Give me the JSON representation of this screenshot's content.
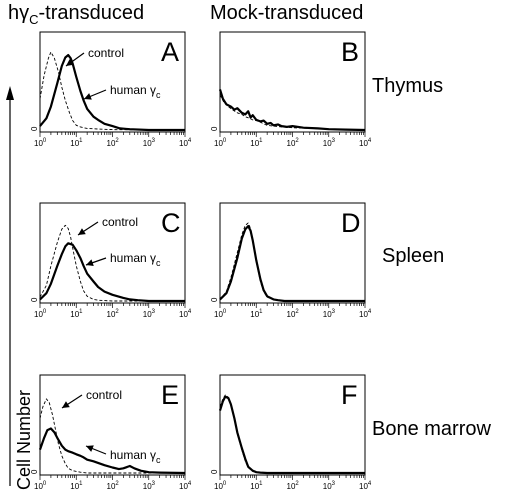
{
  "headers": {
    "left_prefix": "hγ",
    "left_sub": "C",
    "left_suffix": "-transduced",
    "right": "Mock-transduced"
  },
  "tissues": [
    "Thymus",
    "Spleen",
    "Bone marrow"
  ],
  "y_axis_label": "Cell Number",
  "annotations": {
    "control": "control",
    "human_prefix": "human γ",
    "human_sub": "c"
  },
  "chart_data": [
    {
      "type": "line",
      "panel": "A",
      "x_scale": "log",
      "xlim": [
        1,
        10000
      ],
      "y_min_label": "0",
      "x_ticks": [
        {
          "base": "10",
          "exp": "0"
        },
        {
          "base": "10",
          "exp": "1"
        },
        {
          "base": "10",
          "exp": "2"
        },
        {
          "base": "10",
          "exp": "3"
        },
        {
          "base": "10",
          "exp": "4"
        }
      ],
      "series": [
        {
          "name": "control",
          "style": "dashed",
          "x": [
            1,
            1.3,
            1.7,
            2,
            2.5,
            3.2,
            4,
            5,
            6.5,
            8,
            10,
            13,
            16,
            20,
            30,
            50,
            100,
            1000,
            10000
          ],
          "y": [
            0.4,
            0.7,
            0.92,
            1.0,
            0.92,
            0.75,
            0.55,
            0.38,
            0.22,
            0.12,
            0.06,
            0.04,
            0.03,
            0.02,
            0.015,
            0.01,
            0.005,
            0,
            0
          ]
        },
        {
          "name": "human γc",
          "style": "solid",
          "x": [
            1,
            1.5,
            2,
            3,
            4,
            5,
            6,
            7,
            8,
            10,
            13,
            16,
            20,
            30,
            40,
            60,
            100,
            160,
            300,
            1000,
            10000
          ],
          "y": [
            0.05,
            0.15,
            0.3,
            0.6,
            0.82,
            0.93,
            0.96,
            0.92,
            0.85,
            0.68,
            0.5,
            0.38,
            0.27,
            0.17,
            0.13,
            0.08,
            0.05,
            0.02,
            0.01,
            0,
            0
          ]
        }
      ]
    },
    {
      "type": "line",
      "panel": "B",
      "x_scale": "log",
      "xlim": [
        1,
        10000
      ],
      "y_min_label": "0",
      "x_ticks": [
        {
          "base": "10",
          "exp": "0"
        },
        {
          "base": "10",
          "exp": "1"
        },
        {
          "base": "10",
          "exp": "2"
        },
        {
          "base": "10",
          "exp": "3"
        },
        {
          "base": "10",
          "exp": "4"
        }
      ],
      "series": [
        {
          "name": "control",
          "style": "dashed",
          "x": [
            1,
            1.3,
            1.7,
            2.2,
            3,
            4,
            5,
            6.5,
            8,
            10,
            13,
            16,
            20,
            30,
            50,
            100,
            300,
            1000,
            3000,
            10000
          ],
          "y": [
            0.45,
            0.35,
            0.3,
            0.26,
            0.22,
            0.2,
            0.17,
            0.15,
            0.13,
            0.12,
            0.1,
            0.08,
            0.06,
            0.05,
            0.04,
            0.03,
            0.02,
            0.01,
            0.005,
            0
          ]
        },
        {
          "name": "human γc",
          "style": "solid",
          "x": [
            1,
            1.2,
            1.5,
            2,
            2.5,
            3,
            4,
            5,
            6,
            7,
            8,
            10,
            13,
            16,
            20,
            25,
            30,
            40,
            50,
            70,
            100,
            200,
            500,
            1000,
            3000,
            10000
          ],
          "y": [
            0.52,
            0.4,
            0.33,
            0.3,
            0.26,
            0.28,
            0.22,
            0.2,
            0.24,
            0.16,
            0.19,
            0.13,
            0.11,
            0.12,
            0.08,
            0.09,
            0.06,
            0.07,
            0.05,
            0.04,
            0.05,
            0.03,
            0.02,
            0.01,
            0.005,
            0
          ]
        }
      ]
    },
    {
      "type": "line",
      "panel": "C",
      "x_scale": "log",
      "xlim": [
        1,
        10000
      ],
      "y_min_label": "0",
      "x_ticks": [
        {
          "base": "10",
          "exp": "0"
        },
        {
          "base": "10",
          "exp": "1"
        },
        {
          "base": "10",
          "exp": "2"
        },
        {
          "base": "10",
          "exp": "3"
        },
        {
          "base": "10",
          "exp": "4"
        }
      ],
      "series": [
        {
          "name": "control",
          "style": "dashed",
          "x": [
            1,
            1.5,
            2,
            3,
            4,
            5,
            6,
            7,
            8,
            10,
            13,
            16,
            20,
            30,
            40,
            60,
            100,
            1000,
            10000
          ],
          "y": [
            0.05,
            0.2,
            0.45,
            0.75,
            0.92,
            0.97,
            0.93,
            0.82,
            0.68,
            0.45,
            0.25,
            0.13,
            0.06,
            0.02,
            0.01,
            0.005,
            0,
            0,
            0
          ]
        },
        {
          "name": "human γc",
          "style": "solid",
          "x": [
            1,
            1.5,
            2,
            3,
            4,
            5,
            6,
            7,
            8,
            10,
            13,
            16,
            20,
            30,
            40,
            60,
            100,
            200,
            300,
            500,
            1000,
            10000
          ],
          "y": [
            0.02,
            0.1,
            0.22,
            0.45,
            0.6,
            0.7,
            0.74,
            0.73,
            0.72,
            0.65,
            0.55,
            0.45,
            0.35,
            0.25,
            0.18,
            0.12,
            0.08,
            0.04,
            0.02,
            0.01,
            0,
            0
          ]
        }
      ]
    },
    {
      "type": "line",
      "panel": "D",
      "x_scale": "log",
      "xlim": [
        1,
        10000
      ],
      "y_min_label": "0",
      "x_ticks": [
        {
          "base": "10",
          "exp": "0"
        },
        {
          "base": "10",
          "exp": "1"
        },
        {
          "base": "10",
          "exp": "2"
        },
        {
          "base": "10",
          "exp": "3"
        },
        {
          "base": "10",
          "exp": "4"
        }
      ],
      "series": [
        {
          "name": "control",
          "style": "dashed",
          "x": [
            1,
            1.5,
            2,
            3,
            4,
            5,
            6,
            7,
            8,
            10,
            13,
            16,
            20,
            30,
            40,
            60,
            100,
            1000,
            10000
          ],
          "y": [
            0.02,
            0.12,
            0.3,
            0.62,
            0.85,
            0.97,
            1.0,
            0.93,
            0.78,
            0.5,
            0.25,
            0.12,
            0.05,
            0.02,
            0.01,
            0,
            0,
            0,
            0
          ]
        },
        {
          "name": "human γc",
          "style": "solid",
          "x": [
            1,
            1.5,
            2,
            3,
            4,
            5,
            6,
            7,
            8,
            10,
            13,
            16,
            20,
            30,
            40,
            60,
            100,
            1000,
            10000
          ],
          "y": [
            0.02,
            0.1,
            0.25,
            0.55,
            0.8,
            0.92,
            0.96,
            0.9,
            0.78,
            0.52,
            0.28,
            0.14,
            0.06,
            0.02,
            0.01,
            0,
            0,
            0,
            0
          ]
        }
      ]
    },
    {
      "type": "line",
      "panel": "E",
      "x_scale": "log",
      "xlim": [
        1,
        10000
      ],
      "y_min_label": "0",
      "x_ticks": [
        {
          "base": "10",
          "exp": "0"
        },
        {
          "base": "10",
          "exp": "1"
        },
        {
          "base": "10",
          "exp": "2"
        },
        {
          "base": "10",
          "exp": "3"
        },
        {
          "base": "10",
          "exp": "4"
        }
      ],
      "series": [
        {
          "name": "control",
          "style": "dashed",
          "x": [
            1,
            1.2,
            1.5,
            1.8,
            2.2,
            2.7,
            3.2,
            4,
            5,
            6,
            8,
            10,
            13,
            16,
            20,
            30,
            50,
            100,
            1000,
            10000
          ],
          "y": [
            0.7,
            0.85,
            0.95,
            0.9,
            0.75,
            0.55,
            0.38,
            0.22,
            0.12,
            0.06,
            0.03,
            0.02,
            0.01,
            0.005,
            0,
            0,
            0,
            0,
            0,
            0
          ]
        },
        {
          "name": "human γc",
          "style": "solid",
          "x": [
            1,
            1.3,
            1.6,
            2,
            2.5,
            3,
            4,
            5,
            6,
            8,
            10,
            13,
            16,
            20,
            30,
            40,
            60,
            100,
            150,
            200,
            300,
            400,
            600,
            1000,
            2000,
            10000
          ],
          "y": [
            0.3,
            0.45,
            0.55,
            0.57,
            0.52,
            0.45,
            0.35,
            0.3,
            0.28,
            0.26,
            0.24,
            0.22,
            0.2,
            0.17,
            0.15,
            0.13,
            0.1,
            0.07,
            0.05,
            0.06,
            0.09,
            0.06,
            0.03,
            0.01,
            0.005,
            0
          ]
        }
      ]
    },
    {
      "type": "line",
      "panel": "F",
      "x_scale": "log",
      "xlim": [
        1,
        10000
      ],
      "y_min_label": "0",
      "x_ticks": [
        {
          "base": "10",
          "exp": "0"
        },
        {
          "base": "10",
          "exp": "1"
        },
        {
          "base": "10",
          "exp": "2"
        },
        {
          "base": "10",
          "exp": "3"
        },
        {
          "base": "10",
          "exp": "4"
        }
      ],
      "series": [
        {
          "name": "control",
          "style": "dashed",
          "x": [
            1,
            1.2,
            1.4,
            1.7,
            2,
            2.5,
            3,
            4,
            5,
            6,
            8,
            10,
            13,
            20,
            100,
            10000
          ],
          "y": [
            0.85,
            0.95,
            1.0,
            0.97,
            0.88,
            0.7,
            0.5,
            0.3,
            0.15,
            0.07,
            0.02,
            0.01,
            0.005,
            0,
            0,
            0
          ]
        },
        {
          "name": "human γc",
          "style": "solid",
          "x": [
            1,
            1.2,
            1.4,
            1.7,
            2,
            2.5,
            3,
            4,
            5,
            6,
            8,
            10,
            13,
            20,
            100,
            10000
          ],
          "y": [
            0.8,
            0.92,
            0.98,
            0.96,
            0.88,
            0.7,
            0.52,
            0.32,
            0.18,
            0.08,
            0.03,
            0.01,
            0.005,
            0,
            0,
            0
          ]
        }
      ]
    }
  ]
}
